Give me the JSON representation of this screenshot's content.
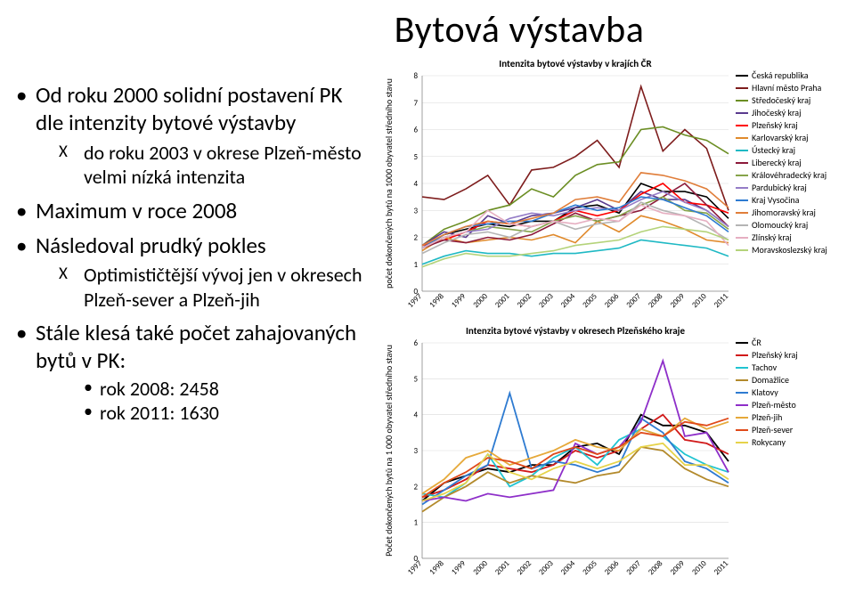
{
  "title": "Bytová výstavba",
  "bullets": {
    "b1": "Od roku 2000 solidní postavení PK dle intenzity bytové výstavby",
    "b1s": "do roku 2003 v okrese Plzeň-město velmi nízká intenzita",
    "b2": "Maximum v roce 2008",
    "b3": "Následoval prudký pokles",
    "b3s": "Optimističtější vývoj jen v okresech Plzeň-sever a Plzeň-jih",
    "b4": "Stále klesá také počet zahajovaných bytů v PK:",
    "b4a": "rok 2008: 2458",
    "b4b": "rok 2011: 1630"
  },
  "chart1": {
    "title": "Intenzita bytové výstavby v krajích ČR",
    "ylabel": "počet dokončených bytů na 1000 obyvatel středního stavu",
    "ylim": [
      0,
      8
    ],
    "ytick": 1,
    "years": [
      "1997",
      "1998",
      "1999",
      "2000",
      "2001",
      "2002",
      "2003",
      "2004",
      "2005",
      "2006",
      "2007",
      "2008",
      "2009",
      "2010",
      "2011"
    ],
    "grid_color": "#d9d9d9",
    "background": "#ffffff",
    "line_width": 1.6,
    "series": [
      {
        "name": "Česká republika",
        "color": "#000000",
        "v": [
          1.6,
          2.1,
          2.3,
          2.5,
          2.4,
          2.6,
          2.6,
          3.1,
          3.2,
          2.9,
          4.0,
          3.7,
          3.7,
          3.5,
          2.7
        ]
      },
      {
        "name": "Hlavní město Praha",
        "color": "#7e1d1d",
        "v": [
          3.5,
          3.4,
          3.8,
          4.3,
          3.2,
          4.5,
          4.6,
          5.0,
          5.6,
          4.6,
          7.6,
          5.2,
          6.0,
          5.3,
          3.0
        ]
      },
      {
        "name": "Středočeský kraj",
        "color": "#6b8e23",
        "v": [
          1.7,
          2.3,
          2.6,
          3.0,
          3.2,
          3.8,
          3.5,
          4.3,
          4.7,
          4.8,
          6.0,
          6.1,
          5.8,
          5.6,
          5.1
        ]
      },
      {
        "name": "Jihočeský kraj",
        "color": "#5a3a8e",
        "v": [
          1.7,
          2.2,
          2.0,
          2.8,
          2.5,
          2.8,
          2.9,
          3.1,
          3.4,
          3.0,
          3.7,
          3.4,
          3.4,
          3.0,
          2.4
        ]
      },
      {
        "name": "Plzeňský kraj",
        "color": "#ff0000",
        "v": [
          1.7,
          1.9,
          2.2,
          2.6,
          2.5,
          2.4,
          2.6,
          3.0,
          2.8,
          3.0,
          3.6,
          4.0,
          3.3,
          3.2,
          2.9
        ]
      },
      {
        "name": "Karlovarský kraj",
        "color": "#e08a2c",
        "v": [
          1.5,
          2.0,
          1.8,
          1.9,
          2.0,
          1.9,
          2.1,
          1.8,
          2.6,
          2.2,
          2.8,
          2.6,
          2.3,
          1.9,
          1.8
        ]
      },
      {
        "name": "Ústecký kraj",
        "color": "#1fb9c4",
        "v": [
          1.0,
          1.3,
          1.5,
          1.4,
          1.4,
          1.3,
          1.4,
          1.4,
          1.5,
          1.6,
          1.9,
          1.8,
          1.7,
          1.6,
          1.3
        ]
      },
      {
        "name": "Liberecký kraj",
        "color": "#8c1a3a",
        "v": [
          1.6,
          1.9,
          1.8,
          2.0,
          1.9,
          2.1,
          2.5,
          2.9,
          2.6,
          2.8,
          3.0,
          3.5,
          4.0,
          3.2,
          2.4
        ]
      },
      {
        "name": "Královéhradecký kraj",
        "color": "#86a44a",
        "v": [
          1.6,
          2.0,
          2.2,
          2.4,
          2.3,
          2.2,
          2.6,
          2.8,
          2.6,
          2.8,
          3.2,
          3.5,
          3.0,
          2.9,
          2.3
        ]
      },
      {
        "name": "Pardubický kraj",
        "color": "#957dc7",
        "v": [
          1.6,
          2.0,
          2.2,
          2.3,
          2.7,
          2.9,
          2.8,
          3.0,
          3.1,
          3.0,
          3.4,
          3.7,
          3.3,
          3.0,
          2.4
        ]
      },
      {
        "name": "Kraj Vysočina",
        "color": "#2e7bd1",
        "v": [
          1.6,
          2.1,
          2.4,
          2.5,
          2.6,
          2.6,
          2.9,
          3.2,
          3.0,
          3.1,
          3.5,
          3.4,
          3.1,
          2.8,
          2.2
        ]
      },
      {
        "name": "Jihomoravský kraj",
        "color": "#e07e3a",
        "v": [
          1.7,
          2.1,
          2.4,
          2.6,
          2.5,
          2.7,
          2.9,
          3.4,
          3.5,
          3.3,
          4.4,
          4.3,
          4.1,
          3.8,
          3.1
        ]
      },
      {
        "name": "Olomoucký kraj",
        "color": "#b4b4b4",
        "v": [
          1.4,
          1.8,
          2.1,
          2.2,
          2.0,
          2.4,
          2.6,
          2.3,
          2.5,
          2.6,
          3.3,
          3.0,
          2.8,
          2.4,
          1.9
        ]
      },
      {
        "name": "Zlínský kraj",
        "color": "#e6afc1",
        "v": [
          1.6,
          2.0,
          2.2,
          3.0,
          2.5,
          2.4,
          2.6,
          2.5,
          2.7,
          2.6,
          3.2,
          2.9,
          2.8,
          2.6,
          1.7
        ]
      },
      {
        "name": "Moravskoslezský kraj",
        "color": "#b4d37a",
        "v": [
          0.9,
          1.2,
          1.4,
          1.3,
          1.3,
          1.4,
          1.5,
          1.7,
          1.8,
          1.9,
          2.2,
          2.4,
          2.3,
          2.2,
          1.9
        ]
      }
    ]
  },
  "chart2": {
    "title": "Intenzita bytové výstavby v okresech Plzeňského kraje",
    "ylabel": "Počet dokončených bytů na 1 000 obyvatel středního stavu",
    "ylim": [
      0,
      6
    ],
    "ytick": 1,
    "years": [
      "1997",
      "1998",
      "1999",
      "2000",
      "2001",
      "2002",
      "2003",
      "2004",
      "2005",
      "2006",
      "2007",
      "2008",
      "2009",
      "2010",
      "2011"
    ],
    "grid_color": "#d9d9d9",
    "background": "#ffffff",
    "line_width": 1.8,
    "series": [
      {
        "name": "ČR",
        "color": "#000000",
        "v": [
          1.6,
          2.1,
          2.3,
          2.5,
          2.4,
          2.6,
          2.6,
          3.1,
          3.2,
          2.9,
          4.0,
          3.7,
          3.7,
          3.5,
          2.7
        ]
      },
      {
        "name": "Plzeňský kraj",
        "color": "#d11a1a",
        "v": [
          1.7,
          1.9,
          2.2,
          2.6,
          2.5,
          2.4,
          2.6,
          3.0,
          2.8,
          3.0,
          3.6,
          4.0,
          3.3,
          3.2,
          2.9
        ]
      },
      {
        "name": "Tachov",
        "color": "#21c4d1",
        "v": [
          1.8,
          1.7,
          2.1,
          2.9,
          2.0,
          2.3,
          2.8,
          3.1,
          2.6,
          3.3,
          3.6,
          3.4,
          2.9,
          2.6,
          2.4
        ]
      },
      {
        "name": "Domažlice",
        "color": "#b38a2c",
        "v": [
          1.3,
          1.7,
          2.0,
          2.4,
          2.1,
          2.3,
          2.2,
          2.1,
          2.3,
          2.4,
          3.1,
          3.0,
          2.5,
          2.2,
          2.0
        ]
      },
      {
        "name": "Klatovy",
        "color": "#2e7bd1",
        "v": [
          1.5,
          1.9,
          2.3,
          2.6,
          4.6,
          2.5,
          2.7,
          2.6,
          2.4,
          2.6,
          3.9,
          3.5,
          2.7,
          2.5,
          2.1
        ]
      },
      {
        "name": "Plzeň-město",
        "color": "#8e2fc9",
        "v": [
          1.6,
          1.7,
          1.6,
          1.8,
          1.7,
          1.8,
          1.9,
          3.2,
          2.9,
          3.1,
          3.8,
          5.5,
          3.4,
          3.5,
          2.4
        ]
      },
      {
        "name": "Plzeň-jih",
        "color": "#e6a93a",
        "v": [
          1.8,
          2.2,
          2.8,
          3.0,
          2.6,
          2.8,
          3.0,
          3.3,
          3.1,
          3.0,
          3.6,
          3.4,
          3.9,
          3.6,
          3.8
        ]
      },
      {
        "name": "Plzeň-sever",
        "color": "#e04a1a",
        "v": [
          1.7,
          2.1,
          2.4,
          2.8,
          2.7,
          2.5,
          2.9,
          3.1,
          2.9,
          3.1,
          3.5,
          3.4,
          3.8,
          3.7,
          3.9
        ]
      },
      {
        "name": "Rokycany",
        "color": "#e6d34a",
        "v": [
          1.6,
          1.8,
          2.1,
          2.9,
          2.4,
          2.2,
          2.5,
          2.7,
          2.5,
          2.7,
          3.1,
          3.2,
          2.6,
          2.6,
          2.2
        ]
      }
    ]
  }
}
